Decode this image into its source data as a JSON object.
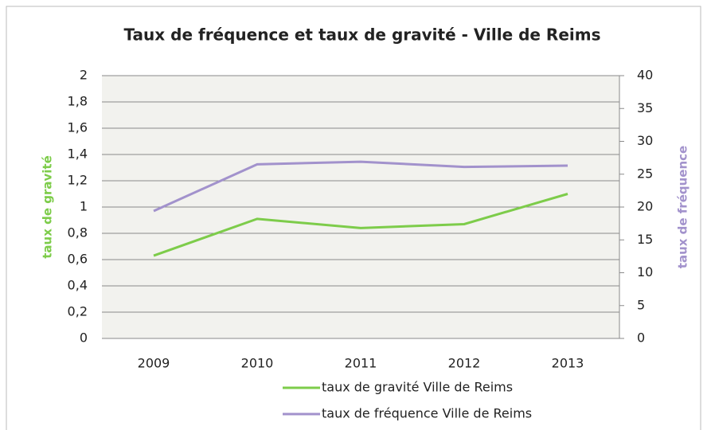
{
  "chart_data": {
    "type": "line",
    "title": "Taux de fréquence et taux de gravité - Ville de Reims",
    "ylabel": "taux de gravité",
    "y2label": "taux de fréquence",
    "categories": [
      "2009",
      "2010",
      "2011",
      "2012",
      "2013"
    ],
    "series": [
      {
        "name": "taux de gravité Ville de Reims",
        "color": "#7dcc4a",
        "values": [
          0.63,
          0.91,
          0.84,
          0.87,
          1.1
        ]
      },
      {
        "name": "taux de fréquence Ville de Reims",
        "color": "#a292cc",
        "axis": "y2",
        "values": [
          19.4,
          26.5,
          26.9,
          26.1,
          26.3
        ]
      }
    ],
    "ylim": [
      0,
      2
    ],
    "yticks": [
      0,
      {
        "value": 0.2,
        "label": "0,2"
      },
      {
        "value": 0.4,
        "label": "0,4"
      },
      {
        "value": 0.6,
        "label": "0,6"
      },
      {
        "value": 0.8,
        "label": "0,8"
      },
      1,
      {
        "value": 1.2,
        "label": "1,2"
      },
      {
        "value": 1.4,
        "label": "1,4"
      },
      {
        "value": 1.6,
        "label": "1,6"
      },
      {
        "value": 1.8,
        "label": "1,8"
      },
      2
    ],
    "y2lim": [
      0,
      40
    ],
    "y2ticks": [
      0,
      5,
      10,
      15,
      20,
      25,
      30,
      35,
      40
    ],
    "grid": true,
    "legend": "bottom"
  }
}
